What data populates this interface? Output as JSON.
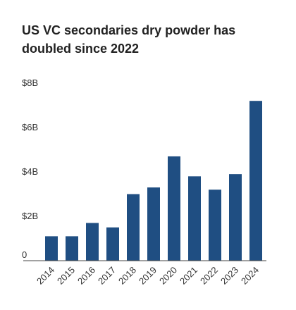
{
  "title": "US VC secondaries dry powder has doubled since 2022",
  "colors": {
    "bar": "#1f4e82",
    "axis": "#444444",
    "text": "#333333"
  },
  "chart_data": {
    "type": "bar",
    "title": "US VC secondaries dry powder has doubled since 2022",
    "xlabel": "",
    "ylabel": "",
    "categories": [
      "2014",
      "2015",
      "2016",
      "2017",
      "2018",
      "2019",
      "2020",
      "2021",
      "2022",
      "2023",
      "2024"
    ],
    "values": [
      1.1,
      1.1,
      1.7,
      1.5,
      3.0,
      3.3,
      4.7,
      3.8,
      3.2,
      3.9,
      7.2
    ],
    "ylim": [
      0,
      8
    ],
    "yticks": [
      0,
      2,
      4,
      6,
      8
    ],
    "ytick_labels": [
      "0",
      "$2B",
      "$4B",
      "$6B",
      "$8B"
    ],
    "grid": false,
    "legend": "none"
  }
}
